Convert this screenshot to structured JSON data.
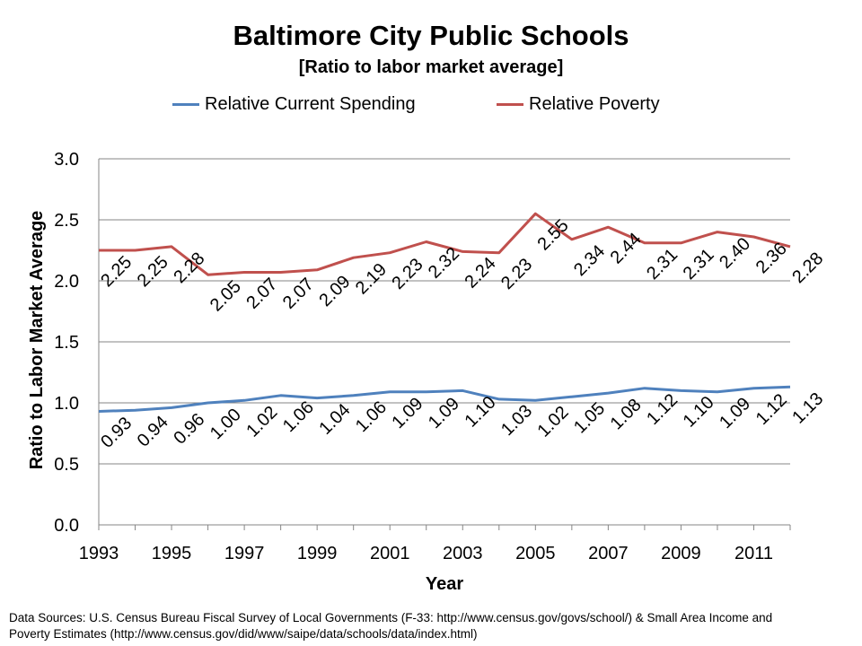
{
  "chart_data": {
    "type": "line",
    "title": "Baltimore City Public Schools",
    "subtitle": "[Ratio to labor market average]",
    "xlabel": "Year",
    "ylabel": "Ratio to Labor Market Average",
    "ylim": [
      0,
      3
    ],
    "yticks": [
      "0.0",
      "0.5",
      "1.0",
      "1.5",
      "2.0",
      "2.5",
      "3.0"
    ],
    "xlim": [
      1993,
      2012
    ],
    "xticks": [
      "1993",
      "1995",
      "1997",
      "1999",
      "2001",
      "2003",
      "2005",
      "2007",
      "2009",
      "2011"
    ],
    "legend_position": "top",
    "grid": true,
    "x": [
      1993,
      1994,
      1995,
      1996,
      1997,
      1998,
      1999,
      2000,
      2001,
      2002,
      2003,
      2004,
      2005,
      2006,
      2007,
      2008,
      2009,
      2010,
      2011,
      2012
    ],
    "series": [
      {
        "name": "Relative Current Spending",
        "color": "#4f81bd",
        "values": [
          0.93,
          0.94,
          0.96,
          1.0,
          1.02,
          1.06,
          1.04,
          1.06,
          1.09,
          1.09,
          1.1,
          1.03,
          1.02,
          1.05,
          1.08,
          1.12,
          1.1,
          1.09,
          1.12,
          1.13
        ],
        "labels": [
          "0.93",
          "0.94",
          "0.96",
          "1.00",
          "1.02",
          "1.06",
          "1.04",
          "1.06",
          "1.09",
          "1.09",
          "1.10",
          "1.03",
          "1.02",
          "1.05",
          "1.08",
          "1.12",
          "1.10",
          "1.09",
          "1.12",
          "1.13"
        ]
      },
      {
        "name": "Relative Poverty",
        "color": "#c0504d",
        "values": [
          2.25,
          2.25,
          2.28,
          2.05,
          2.07,
          2.07,
          2.09,
          2.19,
          2.23,
          2.32,
          2.24,
          2.23,
          2.55,
          2.34,
          2.44,
          2.31,
          2.31,
          2.4,
          2.36,
          2.28
        ],
        "labels": [
          "2.25",
          "2.25",
          "2.28",
          "2.05",
          "2.07",
          "2.07",
          "2.09",
          "2.19",
          "2.23",
          "2.32",
          "2.24",
          "2.23",
          "2.55",
          "2.34",
          "2.44",
          "2.31",
          "2.31",
          "2.40",
          "2.36",
          "2.28"
        ]
      }
    ]
  },
  "footer": {
    "line1": "Data Sources: U.S. Census Bureau Fiscal Survey of Local Governments  (F-33: http://www.census.gov/govs/school/) & Small Area Income and",
    "line2": "Poverty Estimates (http://www.census.gov/did/www/saipe/data/schools/data/index.html)"
  }
}
